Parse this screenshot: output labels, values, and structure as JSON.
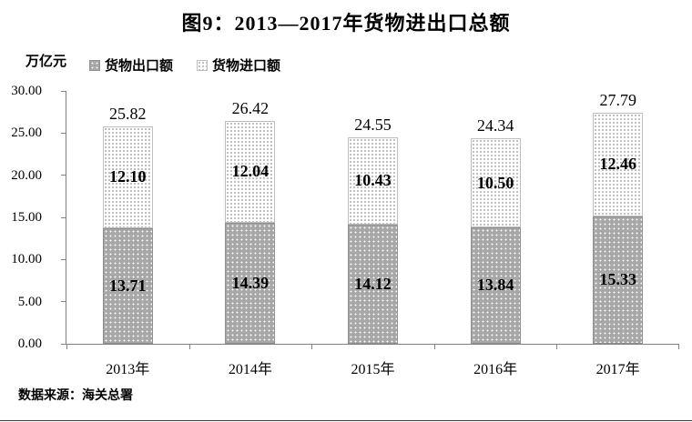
{
  "chart_data": {
    "type": "bar",
    "stacked": true,
    "title": "图9：2013—2017年货物进出口总额",
    "y_unit": "万亿元",
    "categories": [
      "2013年",
      "2014年",
      "2015年",
      "2016年",
      "2017年"
    ],
    "series": [
      {
        "name": "货物出口额",
        "values": [
          13.71,
          14.39,
          14.12,
          13.84,
          15.33
        ]
      },
      {
        "name": "货物进口额",
        "values": [
          12.1,
          12.04,
          10.43,
          10.5,
          12.46
        ]
      }
    ],
    "totals": [
      25.82,
      26.42,
      24.55,
      24.34,
      27.79
    ],
    "ylim": [
      0,
      30
    ],
    "yticks": [
      "0.00",
      "5.00",
      "10.00",
      "15.00",
      "20.00",
      "25.00",
      "30.00"
    ],
    "grid": false,
    "legend_position": "top-left",
    "source": "数据来源：海关总署",
    "colors": {
      "export_fill": "#a7a7a7",
      "import_fill": "#ffffff",
      "axis": "#808080",
      "text": "#000000"
    }
  }
}
